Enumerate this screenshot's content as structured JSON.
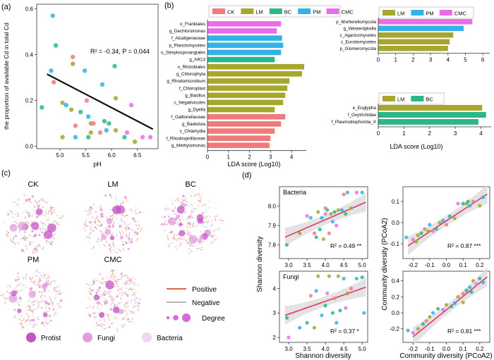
{
  "panels": {
    "a": "(a)",
    "b": "(b)",
    "c": "(c)",
    "d": "(d)"
  },
  "colors": {
    "CK": "#f07a7a",
    "LM": "#a7a72d",
    "BC": "#2bb886",
    "PM": "#33b2e8",
    "CMC": "#e76ee8",
    "line": "#111111",
    "fitline": "#e0336f",
    "band": "#dcdcdc",
    "positive": "#d96a4a",
    "negative": "#b8b8b8",
    "protist": "#c653c6",
    "fungi": "#df9fdc",
    "bacteria": "#f3d5f0"
  },
  "chart_data": [
    {
      "type": "scatter",
      "id": "a",
      "xlabel": "pH",
      "ylabel": "the proportion of available Cd in total Cd",
      "xlim": [
        4.55,
        6.9
      ],
      "ylim": [
        -0.01,
        0.62
      ],
      "xticks": [
        "5.0",
        "5.5",
        "6.0",
        "6.5"
      ],
      "yticks": [
        "0.0",
        "0.2",
        "0.4",
        "0.6"
      ],
      "xtick_values": [
        5.0,
        5.5,
        6.0,
        6.5
      ],
      "ytick_values": [
        0.0,
        0.2,
        0.4,
        0.6
      ],
      "annotation": "R² = -0.34, P = 0.044",
      "fit": [
        [
          4.75,
          0.315
        ],
        [
          6.8,
          0.075
        ]
      ],
      "points": [
        {
          "x": 4.86,
          "y": 0.57,
          "g": "PM"
        },
        {
          "x": 4.92,
          "y": 0.44,
          "g": "BC"
        },
        {
          "x": 4.88,
          "y": 0.28,
          "g": "CK"
        },
        {
          "x": 4.65,
          "y": 0.17,
          "g": "BC"
        },
        {
          "x": 4.83,
          "y": 0.33,
          "g": "PM"
        },
        {
          "x": 5.05,
          "y": 0.19,
          "g": "LM"
        },
        {
          "x": 5.05,
          "y": 0.04,
          "g": "LM"
        },
        {
          "x": 5.12,
          "y": 0.18,
          "g": "PM"
        },
        {
          "x": 5.25,
          "y": 0.36,
          "g": "LM"
        },
        {
          "x": 5.25,
          "y": 0.39,
          "g": "CK"
        },
        {
          "x": 5.22,
          "y": 0.16,
          "g": "LM"
        },
        {
          "x": 5.3,
          "y": 0.04,
          "g": "PM"
        },
        {
          "x": 5.4,
          "y": 0.15,
          "g": "BC"
        },
        {
          "x": 5.48,
          "y": 0.33,
          "g": "PM"
        },
        {
          "x": 5.52,
          "y": 0.2,
          "g": "CK"
        },
        {
          "x": 5.55,
          "y": 0.13,
          "g": "PM"
        },
        {
          "x": 5.55,
          "y": 0.04,
          "g": "BC"
        },
        {
          "x": 5.6,
          "y": 0.1,
          "g": "LM"
        },
        {
          "x": 5.65,
          "y": 0.1,
          "g": "CK"
        },
        {
          "x": 5.78,
          "y": 0.06,
          "g": "CK"
        },
        {
          "x": 5.82,
          "y": 0.27,
          "g": "PM"
        },
        {
          "x": 5.86,
          "y": 0.11,
          "g": "BC"
        },
        {
          "x": 5.9,
          "y": 0.07,
          "g": "PM"
        },
        {
          "x": 5.95,
          "y": 0.1,
          "g": "BC"
        },
        {
          "x": 6.06,
          "y": 0.35,
          "g": "BC"
        },
        {
          "x": 6.08,
          "y": 0.21,
          "g": "LM"
        },
        {
          "x": 6.08,
          "y": 0.07,
          "g": "LM"
        },
        {
          "x": 6.25,
          "y": 0.04,
          "g": "BC"
        },
        {
          "x": 6.3,
          "y": 0.06,
          "g": "CMC"
        },
        {
          "x": 6.38,
          "y": 0.18,
          "g": "CMC"
        },
        {
          "x": 6.45,
          "y": 0.02,
          "g": "LM"
        },
        {
          "x": 6.6,
          "y": 0.04,
          "g": "CMC"
        },
        {
          "x": 6.75,
          "y": 0.04,
          "g": "CMC"
        },
        {
          "x": 5.3,
          "y": 0.09,
          "g": "CK"
        },
        {
          "x": 5.6,
          "y": 0.06,
          "g": "LM"
        }
      ]
    },
    {
      "type": "bar",
      "id": "b-main",
      "orientation": "horizontal",
      "xlabel": "LDA score (Log10)",
      "xlim": [
        0,
        4.7
      ],
      "xticks": [
        "0",
        "1",
        "2",
        "3",
        "4"
      ],
      "xtick_values": [
        0,
        1,
        2,
        3,
        4
      ],
      "legend": [
        "CK",
        "LM",
        "BC",
        "PM",
        "CMC"
      ],
      "bars": [
        {
          "label": "o_Frankiales",
          "value": 3.5,
          "g": "CMC"
        },
        {
          "label": "g_Dechloromonas",
          "value": 3.3,
          "g": "CMC"
        },
        {
          "label": "f_Alcaligenaceae",
          "value": 3.55,
          "g": "PM"
        },
        {
          "label": "p_Planctomycetes",
          "value": 3.6,
          "g": "PM"
        },
        {
          "label": "o_Streptosporangiales",
          "value": 3.5,
          "g": "PM"
        },
        {
          "label": "g_AR13",
          "value": 3.2,
          "g": "BC"
        },
        {
          "label": "o_Rhizobiales",
          "value": 4.6,
          "g": "LM"
        },
        {
          "label": "g_Chlorophyta",
          "value": 4.5,
          "g": "LM"
        },
        {
          "label": "g_Rhodomicrobium",
          "value": 3.9,
          "g": "LM"
        },
        {
          "label": "f_Chloroplast",
          "value": 3.8,
          "g": "LM"
        },
        {
          "label": "g_Bacillus",
          "value": 3.7,
          "g": "LM"
        },
        {
          "label": "c_Negativicutes",
          "value": 3.6,
          "g": "LM"
        },
        {
          "label": "g_Dyella",
          "value": 3.2,
          "g": "LM"
        },
        {
          "label": "f_Gallionellaceae",
          "value": 3.7,
          "g": "CK"
        },
        {
          "label": "g_Baekduia",
          "value": 3.5,
          "g": "CK"
        },
        {
          "label": "c_Chlamydia",
          "value": 3.2,
          "g": "CK"
        },
        {
          "label": "f_Rhodospirillaceae",
          "value": 3.0,
          "g": "CK"
        },
        {
          "label": "g_Methylomonas",
          "value": 2.95,
          "g": "CK"
        }
      ]
    },
    {
      "type": "bar",
      "id": "b-fungi",
      "orientation": "horizontal",
      "xlim": [
        0,
        6.4
      ],
      "xticks": [
        "0",
        "1",
        "2",
        "3",
        "4",
        "5",
        "6"
      ],
      "xtick_values": [
        0,
        1,
        2,
        3,
        4,
        5,
        6
      ],
      "legend": [
        "LM",
        "PM",
        "CMC"
      ],
      "bars": [
        {
          "label": "p_Mortierellomycota",
          "value": 5.4,
          "g": "CMC"
        },
        {
          "label": "g_Westerdykella",
          "value": 4.9,
          "g": "PM"
        },
        {
          "label": "c_Agaricomycetes",
          "value": 4.3,
          "g": "LM"
        },
        {
          "label": "c_Eurotiomycetes",
          "value": 4.1,
          "g": "LM"
        },
        {
          "label": "p_Glomeromycota",
          "value": 4.0,
          "g": "LM"
        }
      ]
    },
    {
      "type": "bar",
      "id": "b-protist",
      "orientation": "horizontal",
      "xlabel": "LDA score (Log10)",
      "xlim": [
        0,
        4.4
      ],
      "xticks": [
        "0",
        "1",
        "2",
        "3",
        "4"
      ],
      "xtick_values": [
        0,
        1,
        2,
        3,
        4
      ],
      "legend": [
        "LM",
        "BC"
      ],
      "bars": [
        {
          "label": "e_Euglypha",
          "value": 4.05,
          "g": "LM"
        },
        {
          "label": "f_Oxytrichidae",
          "value": 4.2,
          "g": "BC"
        },
        {
          "label": "f_Plasmodiophorida_X",
          "value": 3.9,
          "g": "BC"
        }
      ]
    },
    {
      "type": "scatter",
      "id": "d-bacteria-shannon",
      "title": "Bacteria",
      "ylabel": "Shannon diversity",
      "xlim": [
        2.75,
        5.15
      ],
      "ylim": [
        7.73,
        8.1
      ],
      "xticks": [
        "3.0",
        "3.5",
        "4.0",
        "4.5",
        "5.0"
      ],
      "xtick_values": [
        3.0,
        3.5,
        4.0,
        4.5,
        5.0
      ],
      "yticks": [
        "7.8",
        "7.9",
        "8.0"
      ],
      "ytick_values": [
        7.8,
        7.9,
        8.0
      ],
      "annotation": "R² = 0.49 **",
      "fit": [
        [
          2.9,
          7.84
        ],
        [
          5.1,
          8.02
        ]
      ],
      "points": [
        {
          "x": 2.95,
          "y": 7.8,
          "g": "BC"
        },
        {
          "x": 3.3,
          "y": 7.86,
          "g": "LM"
        },
        {
          "x": 3.5,
          "y": 7.95,
          "g": "CMC"
        },
        {
          "x": 3.6,
          "y": 7.94,
          "g": "PM"
        },
        {
          "x": 3.7,
          "y": 7.86,
          "g": "CK"
        },
        {
          "x": 3.8,
          "y": 7.97,
          "g": "LM"
        },
        {
          "x": 3.85,
          "y": 7.88,
          "g": "BC"
        },
        {
          "x": 3.9,
          "y": 7.94,
          "g": "PM"
        },
        {
          "x": 3.95,
          "y": 7.83,
          "g": "LM"
        },
        {
          "x": 4.0,
          "y": 7.96,
          "g": "CMC"
        },
        {
          "x": 4.05,
          "y": 7.98,
          "g": "BC"
        },
        {
          "x": 4.1,
          "y": 7.86,
          "g": "CK"
        },
        {
          "x": 4.15,
          "y": 7.96,
          "g": "LM"
        },
        {
          "x": 4.2,
          "y": 7.92,
          "g": "PM"
        },
        {
          "x": 4.25,
          "y": 7.97,
          "g": "BC"
        },
        {
          "x": 4.3,
          "y": 7.9,
          "g": "CMC"
        },
        {
          "x": 4.35,
          "y": 7.98,
          "g": "LM"
        },
        {
          "x": 4.45,
          "y": 7.98,
          "g": "PM"
        },
        {
          "x": 4.5,
          "y": 8.06,
          "g": "CK"
        },
        {
          "x": 4.55,
          "y": 7.96,
          "g": "BC"
        },
        {
          "x": 4.6,
          "y": 8.07,
          "g": "PM"
        },
        {
          "x": 4.85,
          "y": 8.07,
          "g": "CMC"
        },
        {
          "x": 5.0,
          "y": 8.07,
          "g": "PM"
        },
        {
          "x": 4.7,
          "y": 7.99,
          "g": "LM"
        },
        {
          "x": 3.75,
          "y": 7.84,
          "g": "BC"
        },
        {
          "x": 4.0,
          "y": 7.99,
          "g": "CK"
        }
      ]
    },
    {
      "type": "scatter",
      "id": "d-bacteria-pcoa",
      "ylabel": "Community diversity (PCoA2)",
      "xlim": [
        -0.26,
        0.26
      ],
      "ylim": [
        -0.17,
        0.17
      ],
      "xticks": [
        "-0.2",
        "-0.1",
        "0.0",
        "0.1",
        "0.2"
      ],
      "xtick_values": [
        -0.2,
        -0.1,
        0.0,
        0.1,
        0.2
      ],
      "yticks": [
        "-0.1",
        "0.0",
        "0.1"
      ],
      "ytick_values": [
        -0.1,
        0.0,
        0.1
      ],
      "annotation": "R² = 0.87 ***",
      "fit": [
        [
          -0.23,
          -0.11
        ],
        [
          0.245,
          0.135
        ]
      ],
      "points": [
        {
          "x": -0.24,
          "y": -0.07,
          "g": "PM"
        },
        {
          "x": -0.2,
          "y": -0.08,
          "g": "CMC"
        },
        {
          "x": -0.17,
          "y": -0.06,
          "g": "LM"
        },
        {
          "x": -0.15,
          "y": -0.05,
          "g": "BC"
        },
        {
          "x": -0.13,
          "y": -0.03,
          "g": "CK"
        },
        {
          "x": -0.11,
          "y": -0.04,
          "g": "LM"
        },
        {
          "x": -0.1,
          "y": -0.01,
          "g": "PM"
        },
        {
          "x": -0.08,
          "y": -0.04,
          "g": "CMC"
        },
        {
          "x": -0.06,
          "y": -0.03,
          "g": "BC"
        },
        {
          "x": -0.04,
          "y": 0.0,
          "g": "LM"
        },
        {
          "x": -0.02,
          "y": 0.01,
          "g": "PM"
        },
        {
          "x": 0.0,
          "y": -0.01,
          "g": "CK"
        },
        {
          "x": 0.02,
          "y": 0.03,
          "g": "BC"
        },
        {
          "x": 0.05,
          "y": 0.02,
          "g": "LM"
        },
        {
          "x": 0.07,
          "y": 0.09,
          "g": "CMC"
        },
        {
          "x": 0.1,
          "y": 0.09,
          "g": "BC"
        },
        {
          "x": 0.12,
          "y": 0.09,
          "g": "LM"
        },
        {
          "x": 0.14,
          "y": 0.08,
          "g": "PM"
        },
        {
          "x": 0.16,
          "y": 0.1,
          "g": "CK"
        },
        {
          "x": 0.2,
          "y": 0.08,
          "g": "LM"
        },
        {
          "x": 0.22,
          "y": 0.12,
          "g": "PM"
        },
        {
          "x": 0.13,
          "y": 0.1,
          "g": "BC"
        },
        {
          "x": -0.18,
          "y": -0.09,
          "g": "LM"
        }
      ]
    },
    {
      "type": "scatter",
      "id": "d-fungi-shannon",
      "title": "Fungi",
      "xlabel": "Shannon diversity",
      "xlim": [
        2.75,
        5.15
      ],
      "ylim": [
        1.8,
        4.7
      ],
      "xticks": [
        "3.0",
        "3.5",
        "4.0",
        "4.5",
        "5.0"
      ],
      "xtick_values": [
        3.0,
        3.5,
        4.0,
        4.5,
        5.0
      ],
      "yticks": [
        "2",
        "3",
        "4"
      ],
      "ytick_values": [
        2,
        3,
        4
      ],
      "annotation": "R² = 0.37 *",
      "fit": [
        [
          2.9,
          2.9
        ],
        [
          5.1,
          4.05
        ]
      ],
      "points": [
        {
          "x": 2.95,
          "y": 2.8,
          "g": "BC"
        },
        {
          "x": 3.0,
          "y": 2.0,
          "g": "CMC"
        },
        {
          "x": 3.3,
          "y": 2.4,
          "g": "PM"
        },
        {
          "x": 3.5,
          "y": 2.6,
          "g": "BC"
        },
        {
          "x": 3.6,
          "y": 3.7,
          "g": "CK"
        },
        {
          "x": 3.7,
          "y": 2.4,
          "g": "LM"
        },
        {
          "x": 3.75,
          "y": 3.9,
          "g": "PM"
        },
        {
          "x": 3.8,
          "y": 4.5,
          "g": "LM"
        },
        {
          "x": 3.9,
          "y": 2.9,
          "g": "PM"
        },
        {
          "x": 4.0,
          "y": 3.3,
          "g": "BC"
        },
        {
          "x": 4.05,
          "y": 3.8,
          "g": "CMC"
        },
        {
          "x": 4.1,
          "y": 4.5,
          "g": "LM"
        },
        {
          "x": 4.2,
          "y": 3.0,
          "g": "BC"
        },
        {
          "x": 4.25,
          "y": 3.6,
          "g": "CK"
        },
        {
          "x": 4.3,
          "y": 2.6,
          "g": "PM"
        },
        {
          "x": 4.35,
          "y": 4.5,
          "g": "LM"
        },
        {
          "x": 4.4,
          "y": 3.1,
          "g": "BC"
        },
        {
          "x": 4.5,
          "y": 4.4,
          "g": "PM"
        },
        {
          "x": 4.55,
          "y": 3.2,
          "g": "CMC"
        },
        {
          "x": 4.6,
          "y": 3.8,
          "g": "LM"
        },
        {
          "x": 4.7,
          "y": 4.0,
          "g": "CK"
        },
        {
          "x": 4.85,
          "y": 4.4,
          "g": "PM"
        },
        {
          "x": 5.0,
          "y": 4.45,
          "g": "BC"
        },
        {
          "x": 5.05,
          "y": 3.0,
          "g": "PM"
        }
      ]
    },
    {
      "type": "scatter",
      "id": "d-fungi-pcoa",
      "xlabel": "Community diversity (PCoA2)",
      "xlim": [
        -0.26,
        0.26
      ],
      "ylim": [
        -0.37,
        0.52
      ],
      "xticks": [
        "-0.2",
        "-0.1",
        "0.0",
        "0.1",
        "0.2"
      ],
      "xtick_values": [
        -0.2,
        -0.1,
        0.0,
        0.1,
        0.2
      ],
      "yticks": [
        "-0.2",
        "0.0",
        "0.2",
        "0.4"
      ],
      "ytick_values": [
        -0.2,
        0.0,
        0.2,
        0.4
      ],
      "annotation": "R² = 0.81 ***",
      "fit": [
        [
          -0.2,
          -0.3
        ],
        [
          0.245,
          0.45
        ]
      ],
      "points": [
        {
          "x": -0.23,
          "y": -0.22,
          "g": "PM"
        },
        {
          "x": -0.2,
          "y": -0.25,
          "g": "CMC"
        },
        {
          "x": -0.17,
          "y": -0.2,
          "g": "LM"
        },
        {
          "x": -0.14,
          "y": -0.14,
          "g": "BC"
        },
        {
          "x": -0.12,
          "y": -0.1,
          "g": "CK"
        },
        {
          "x": -0.1,
          "y": -0.05,
          "g": "LM"
        },
        {
          "x": -0.08,
          "y": 0.0,
          "g": "PM"
        },
        {
          "x": -0.05,
          "y": 0.05,
          "g": "BC"
        },
        {
          "x": -0.02,
          "y": 0.04,
          "g": "CMC"
        },
        {
          "x": 0.0,
          "y": 0.1,
          "g": "LM"
        },
        {
          "x": 0.03,
          "y": 0.08,
          "g": "BC"
        },
        {
          "x": 0.05,
          "y": 0.12,
          "g": "PM"
        },
        {
          "x": 0.07,
          "y": 0.2,
          "g": "LM"
        },
        {
          "x": 0.1,
          "y": 0.24,
          "g": "CK"
        },
        {
          "x": 0.12,
          "y": 0.28,
          "g": "BC"
        },
        {
          "x": 0.14,
          "y": 0.32,
          "g": "PM"
        },
        {
          "x": 0.16,
          "y": 0.4,
          "g": "LM"
        },
        {
          "x": 0.18,
          "y": 0.36,
          "g": "CMC"
        },
        {
          "x": 0.2,
          "y": 0.43,
          "g": "BC"
        },
        {
          "x": 0.22,
          "y": 0.38,
          "g": "PM"
        },
        {
          "x": 0.1,
          "y": 0.13,
          "g": "LM"
        },
        {
          "x": 0.15,
          "y": 0.26,
          "g": "BC"
        }
      ]
    }
  ],
  "networks": {
    "items": [
      {
        "label": "CK"
      },
      {
        "label": "LM"
      },
      {
        "label": "BC"
      },
      {
        "label": "PM"
      },
      {
        "label": "CMC"
      }
    ],
    "legend": {
      "positive": "Positive",
      "negative": "Negative",
      "degree": "Degree"
    },
    "types": {
      "protist": "Protist",
      "fungi": "Fungi",
      "bacteria": "Bacteria"
    }
  }
}
